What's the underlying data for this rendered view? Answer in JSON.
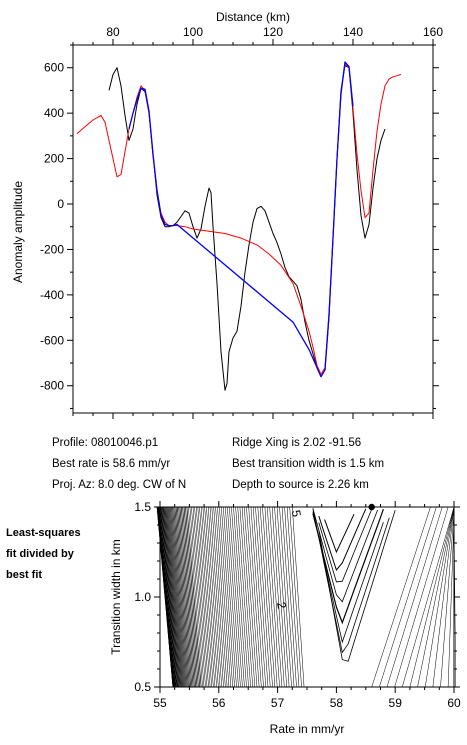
{
  "chart_data": [
    {
      "type": "line",
      "xlabel": "Distance (km)",
      "ylabel": "Anomaly amplitude",
      "xlim": [
        70,
        160
      ],
      "ylim": [
        -920,
        700
      ],
      "x_ticks": [
        80,
        100,
        120,
        140,
        160
      ],
      "y_ticks": [
        600,
        400,
        200,
        0,
        -200,
        -400,
        -600,
        -800
      ],
      "series": [
        {
          "color": "#000000",
          "points": [
            [
              79,
              500
            ],
            [
              80,
              570
            ],
            [
              81,
              600
            ],
            [
              82,
              520
            ],
            [
              83,
              390
            ],
            [
              84,
              280
            ],
            [
              85,
              330
            ],
            [
              86,
              440
            ],
            [
              87,
              510
            ],
            [
              88,
              495
            ],
            [
              89,
              400
            ],
            [
              90,
              220
            ],
            [
              91,
              40
            ],
            [
              92,
              -60
            ],
            [
              93,
              -100
            ],
            [
              94,
              -100
            ],
            [
              95,
              -95
            ],
            [
              96,
              -80
            ],
            [
              97,
              -55
            ],
            [
              98,
              -30
            ],
            [
              99,
              -40
            ],
            [
              100,
              -100
            ],
            [
              101,
              -150
            ],
            [
              102,
              -110
            ],
            [
              103,
              -10
            ],
            [
              104,
              70
            ],
            [
              104.5,
              50
            ],
            [
              105,
              -100
            ],
            [
              106,
              -350
            ],
            [
              107,
              -650
            ],
            [
              108,
              -820
            ],
            [
              108.5,
              -790
            ],
            [
              109,
              -650
            ],
            [
              110,
              -590
            ],
            [
              111,
              -560
            ],
            [
              112,
              -450
            ],
            [
              113,
              -300
            ],
            [
              114,
              -180
            ],
            [
              115,
              -80
            ],
            [
              116,
              -20
            ],
            [
              117,
              -10
            ],
            [
              118,
              -30
            ],
            [
              119,
              -80
            ],
            [
              120,
              -130
            ],
            [
              121,
              -170
            ],
            [
              122,
              -220
            ],
            [
              123,
              -280
            ],
            [
              124,
              -320
            ],
            [
              125,
              -340
            ],
            [
              126,
              -360
            ],
            [
              127,
              -420
            ],
            [
              128,
              -520
            ],
            [
              129,
              -600
            ],
            [
              130,
              -660
            ],
            [
              131,
              -720
            ],
            [
              132,
              -760
            ],
            [
              133,
              -730
            ],
            [
              134,
              -500
            ],
            [
              135,
              -150
            ],
            [
              136,
              200
            ],
            [
              137,
              500
            ],
            [
              138,
              610
            ],
            [
              139,
              600
            ],
            [
              140,
              400
            ],
            [
              141,
              150
            ],
            [
              142,
              -50
            ],
            [
              143,
              -150
            ],
            [
              144,
              -90
            ],
            [
              145,
              70
            ],
            [
              146,
              200
            ],
            [
              147,
              280
            ],
            [
              148,
              330
            ]
          ]
        },
        {
          "color": "#ff0000",
          "points": [
            [
              71,
              310
            ],
            [
              73,
              340
            ],
            [
              75,
              370
            ],
            [
              77,
              390
            ],
            [
              78,
              360
            ],
            [
              79,
              280
            ],
            [
              80,
              200
            ],
            [
              81,
              120
            ],
            [
              82,
              130
            ],
            [
              83,
              230
            ],
            [
              84,
              330
            ],
            [
              85,
              400
            ],
            [
              86,
              470
            ],
            [
              87,
              520
            ],
            [
              88,
              500
            ],
            [
              89,
              400
            ],
            [
              90,
              210
            ],
            [
              91,
              60
            ],
            [
              92,
              -40
            ],
            [
              93,
              -80
            ],
            [
              94,
              -95
            ],
            [
              96,
              -95
            ],
            [
              98,
              -100
            ],
            [
              100,
              -110
            ],
            [
              104,
              -120
            ],
            [
              108,
              -130
            ],
            [
              112,
              -150
            ],
            [
              116,
              -180
            ],
            [
              119,
              -220
            ],
            [
              122,
              -270
            ],
            [
              125,
              -350
            ],
            [
              127,
              -450
            ],
            [
              129,
              -560
            ],
            [
              130,
              -630
            ],
            [
              131,
              -710
            ],
            [
              132,
              -750
            ],
            [
              133,
              -720
            ],
            [
              134,
              -480
            ],
            [
              135,
              -150
            ],
            [
              136,
              200
            ],
            [
              137,
              480
            ],
            [
              138,
              620
            ],
            [
              139,
              600
            ],
            [
              140,
              420
            ],
            [
              141,
              220
            ],
            [
              142,
              60
            ],
            [
              143,
              -60
            ],
            [
              144,
              -40
            ],
            [
              145,
              150
            ],
            [
              146,
              320
            ],
            [
              147,
              440
            ],
            [
              148,
              520
            ],
            [
              149,
              550
            ],
            [
              150,
              560
            ],
            [
              151,
              565
            ],
            [
              152,
              570
            ]
          ]
        },
        {
          "color": "#0000ff",
          "points": [
            [
              84,
              330
            ],
            [
              85,
              400
            ],
            [
              86,
              460
            ],
            [
              87,
              510
            ],
            [
              88,
              505
            ],
            [
              89,
              410
            ],
            [
              90,
              220
            ],
            [
              91,
              60
            ],
            [
              92,
              -50
            ],
            [
              93,
              -90
            ],
            [
              94,
              -95
            ],
            [
              95,
              -95
            ],
            [
              96,
              -90
            ],
            [
              125,
              -520
            ],
            [
              127,
              -580
            ],
            [
              129,
              -640
            ],
            [
              131,
              -720
            ],
            [
              132,
              -760
            ],
            [
              133,
              -730
            ],
            [
              134,
              -490
            ],
            [
              135,
              -150
            ],
            [
              136,
              200
            ],
            [
              137,
              490
            ],
            [
              138,
              625
            ],
            [
              139,
              605
            ],
            [
              140,
              430
            ]
          ]
        }
      ]
    },
    {
      "type": "contour",
      "xlabel": "Rate in mm/yr",
      "ylabel": "Transition width in km",
      "xlim": [
        55,
        60
      ],
      "ylim": [
        0.5,
        1.5
      ],
      "x_ticks": [
        55,
        56,
        57,
        58,
        59,
        60
      ],
      "y_ticks": [
        0.5,
        1.0,
        1.5
      ],
      "best_fit": {
        "rate": 58.6,
        "width": 1.5
      },
      "contour_labels": [
        "5",
        "2"
      ]
    }
  ],
  "info": {
    "profile": "Profile: 08010046.p1",
    "best_rate": "Best rate is 58.6 mm/yr",
    "proj_az": "Proj. Az: 8.0 deg. CW of N",
    "ridge_xing": "Ridge Xing is 2.02 -91.56",
    "best_transition": "Best transition width is 1.5 km",
    "depth": "Depth to source is   2.26 km"
  },
  "side_label": [
    "Least-squares",
    "fit divided by",
    "best fit"
  ]
}
